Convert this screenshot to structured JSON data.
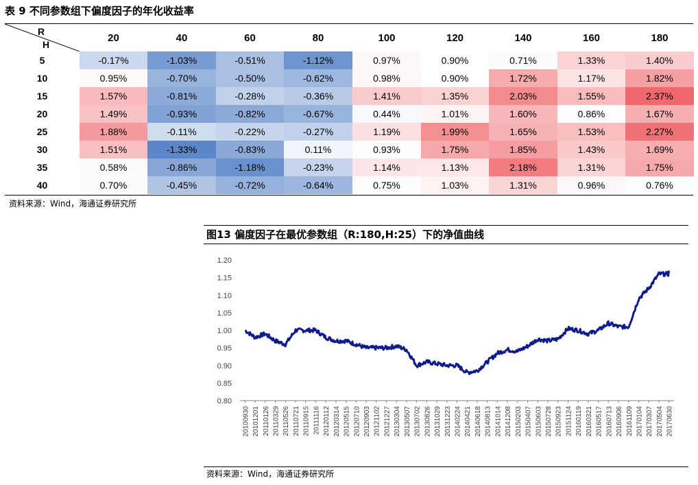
{
  "table": {
    "title": "表 9  不同参数组下偏度因子的年化收益率",
    "corner_r": "R",
    "corner_h": "H",
    "columns": [
      "20",
      "40",
      "60",
      "80",
      "100",
      "120",
      "140",
      "160",
      "180"
    ],
    "rows": [
      {
        "h": "5",
        "cells": [
          "-0.17%",
          "-1.03%",
          "-0.51%",
          "-1.12%",
          "0.97%",
          "0.90%",
          "0.71%",
          "1.33%",
          "1.40%"
        ]
      },
      {
        "h": "10",
        "cells": [
          "0.95%",
          "-0.70%",
          "-0.50%",
          "-0.62%",
          "0.98%",
          "0.90%",
          "1.72%",
          "1.17%",
          "1.82%"
        ]
      },
      {
        "h": "15",
        "cells": [
          "1.57%",
          "-0.81%",
          "-0.28%",
          "-0.36%",
          "1.41%",
          "1.35%",
          "2.03%",
          "1.55%",
          "2.37%"
        ]
      },
      {
        "h": "20",
        "cells": [
          "1.49%",
          "-0.93%",
          "-0.82%",
          "-0.67%",
          "0.44%",
          "1.01%",
          "1.60%",
          "0.86%",
          "1.67%"
        ]
      },
      {
        "h": "25",
        "cells": [
          "1.88%",
          "-0.11%",
          "-0.22%",
          "-0.27%",
          "1.19%",
          "1.99%",
          "1.65%",
          "1.53%",
          "2.27%"
        ]
      },
      {
        "h": "30",
        "cells": [
          "1.51%",
          "-1.33%",
          "-0.83%",
          "0.11%",
          "0.93%",
          "1.75%",
          "1.85%",
          "1.43%",
          "1.69%"
        ]
      },
      {
        "h": "35",
        "cells": [
          "0.58%",
          "-0.86%",
          "-1.18%",
          "-0.23%",
          "1.14%",
          "1.13%",
          "2.18%",
          "1.31%",
          "1.75%"
        ]
      },
      {
        "h": "40",
        "cells": [
          "0.70%",
          "-0.45%",
          "-0.72%",
          "-0.64%",
          "0.75%",
          "1.03%",
          "1.31%",
          "0.96%",
          "0.76%"
        ]
      }
    ],
    "source": "资料来源：Wind，海通证券研究所"
  },
  "figure": {
    "title": "图13 偏度因子在最优参数组（R:180,H:25）下的净值曲线",
    "source": "资料来源：Wind，海通证券研究所"
  },
  "colors": {
    "negative": "#5b86c8",
    "positive": "#f0686c",
    "line": "#0f1a8c",
    "axis": "#7f7f7f"
  },
  "chart_data": {
    "type": "line",
    "title": "图13 偏度因子在最优参数组（R:180,H:25）下的净值曲线",
    "xlabel": "",
    "ylabel": "",
    "ylim": [
      0.8,
      1.2
    ],
    "yticks": [
      "0.80",
      "0.85",
      "0.90",
      "0.95",
      "1.00",
      "1.05",
      "1.10",
      "1.15",
      "1.20"
    ],
    "xticks": [
      "20100930",
      "20101201",
      "20110126",
      "20110329",
      "20110526",
      "20110721",
      "20110915",
      "20111116",
      "20120112",
      "20120314",
      "20120515",
      "20120710",
      "20120903",
      "20121102",
      "20121227",
      "20130304",
      "20130507",
      "20130702",
      "20130826",
      "20131029",
      "20131223",
      "20140224",
      "20140421",
      "20140618",
      "20140813",
      "20141014",
      "20141208",
      "20150203",
      "20150407",
      "20150603",
      "20150728",
      "20150923",
      "20151124",
      "20160119",
      "20160321",
      "20160517",
      "20160713",
      "20160906",
      "20161109",
      "20170104",
      "20170307",
      "20170504",
      "20170630"
    ],
    "series": [
      {
        "name": "净值",
        "x": [
          0,
          1,
          2,
          3,
          4,
          5,
          6,
          7,
          8,
          9,
          10,
          11,
          12,
          13,
          14,
          15,
          16,
          17,
          18,
          19,
          20,
          21,
          22,
          23,
          24,
          25,
          26,
          27,
          28,
          29,
          30,
          31,
          32,
          33,
          34,
          35,
          36,
          37,
          38,
          39,
          40,
          41,
          42
        ],
        "values": [
          1.0,
          0.98,
          0.99,
          0.97,
          0.96,
          1.0,
          1.0,
          1.0,
          0.98,
          0.97,
          0.97,
          0.96,
          0.95,
          0.95,
          0.95,
          0.955,
          0.945,
          0.9,
          0.91,
          0.905,
          0.9,
          0.9,
          0.88,
          0.885,
          0.91,
          0.935,
          0.945,
          0.94,
          0.955,
          0.975,
          0.97,
          0.975,
          1.005,
          1.0,
          0.99,
          1.0,
          1.02,
          1.01,
          1.01,
          1.09,
          1.12,
          1.16,
          1.16
        ]
      }
    ],
    "end_value": 1.17
  }
}
